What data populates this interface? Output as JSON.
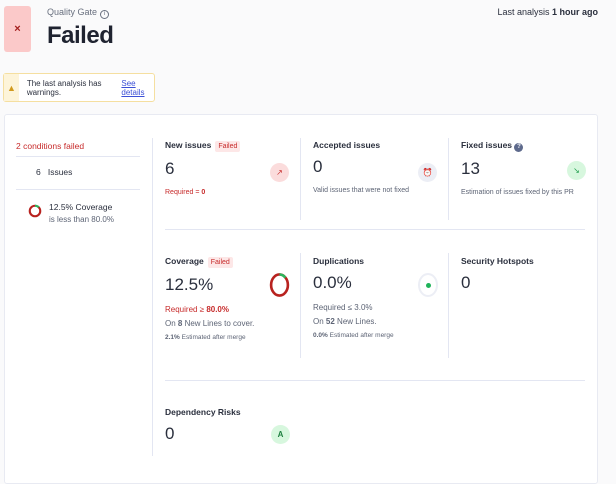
{
  "header": {
    "quality_gate_label": "Quality Gate",
    "status": "Failed",
    "fail_icon": "×",
    "last_analysis_prefix": "Last analysis",
    "last_analysis_time": "1 hour ago"
  },
  "warning": {
    "text": "The last analysis has warnings.",
    "link": "See details"
  },
  "conditions": {
    "title": "2 conditions failed",
    "items": [
      {
        "value": "6",
        "label": "Issues"
      },
      {
        "value": "12.5% Coverage",
        "detail": "is less than 80.0%"
      }
    ]
  },
  "metrics": {
    "new_issues": {
      "title": "New issues",
      "badge": "Failed",
      "value": "6",
      "req_label": "Required = ",
      "req_value": "0"
    },
    "accepted_issues": {
      "title": "Accepted issues",
      "value": "0",
      "note": "Valid issues that were not fixed"
    },
    "fixed_issues": {
      "title": "Fixed issues",
      "help": "?",
      "value": "13",
      "note": "Estimation of issues fixed by this PR"
    },
    "coverage": {
      "title": "Coverage",
      "badge": "Failed",
      "value": "12.5%",
      "req_label": "Required ≥ ",
      "req_value": "80.0%",
      "lines_pre": "On ",
      "lines_count": "8",
      "lines_post": " New Lines to cover.",
      "est_value": "2.1%",
      "est_label": " Estimated after merge",
      "percent": 12.5
    },
    "duplications": {
      "title": "Duplications",
      "value": "0.0%",
      "req": "Required ≤ 3.0%",
      "lines_pre": "On ",
      "lines_count": "52",
      "lines_post": " New Lines.",
      "est_value": "0.0%",
      "est_label": " Estimated after merge"
    },
    "security_hotspots": {
      "title": "Security Hotspots",
      "value": "0"
    },
    "dependency_risks": {
      "title": "Dependency Risks",
      "value": "0",
      "grade": "A"
    }
  }
}
